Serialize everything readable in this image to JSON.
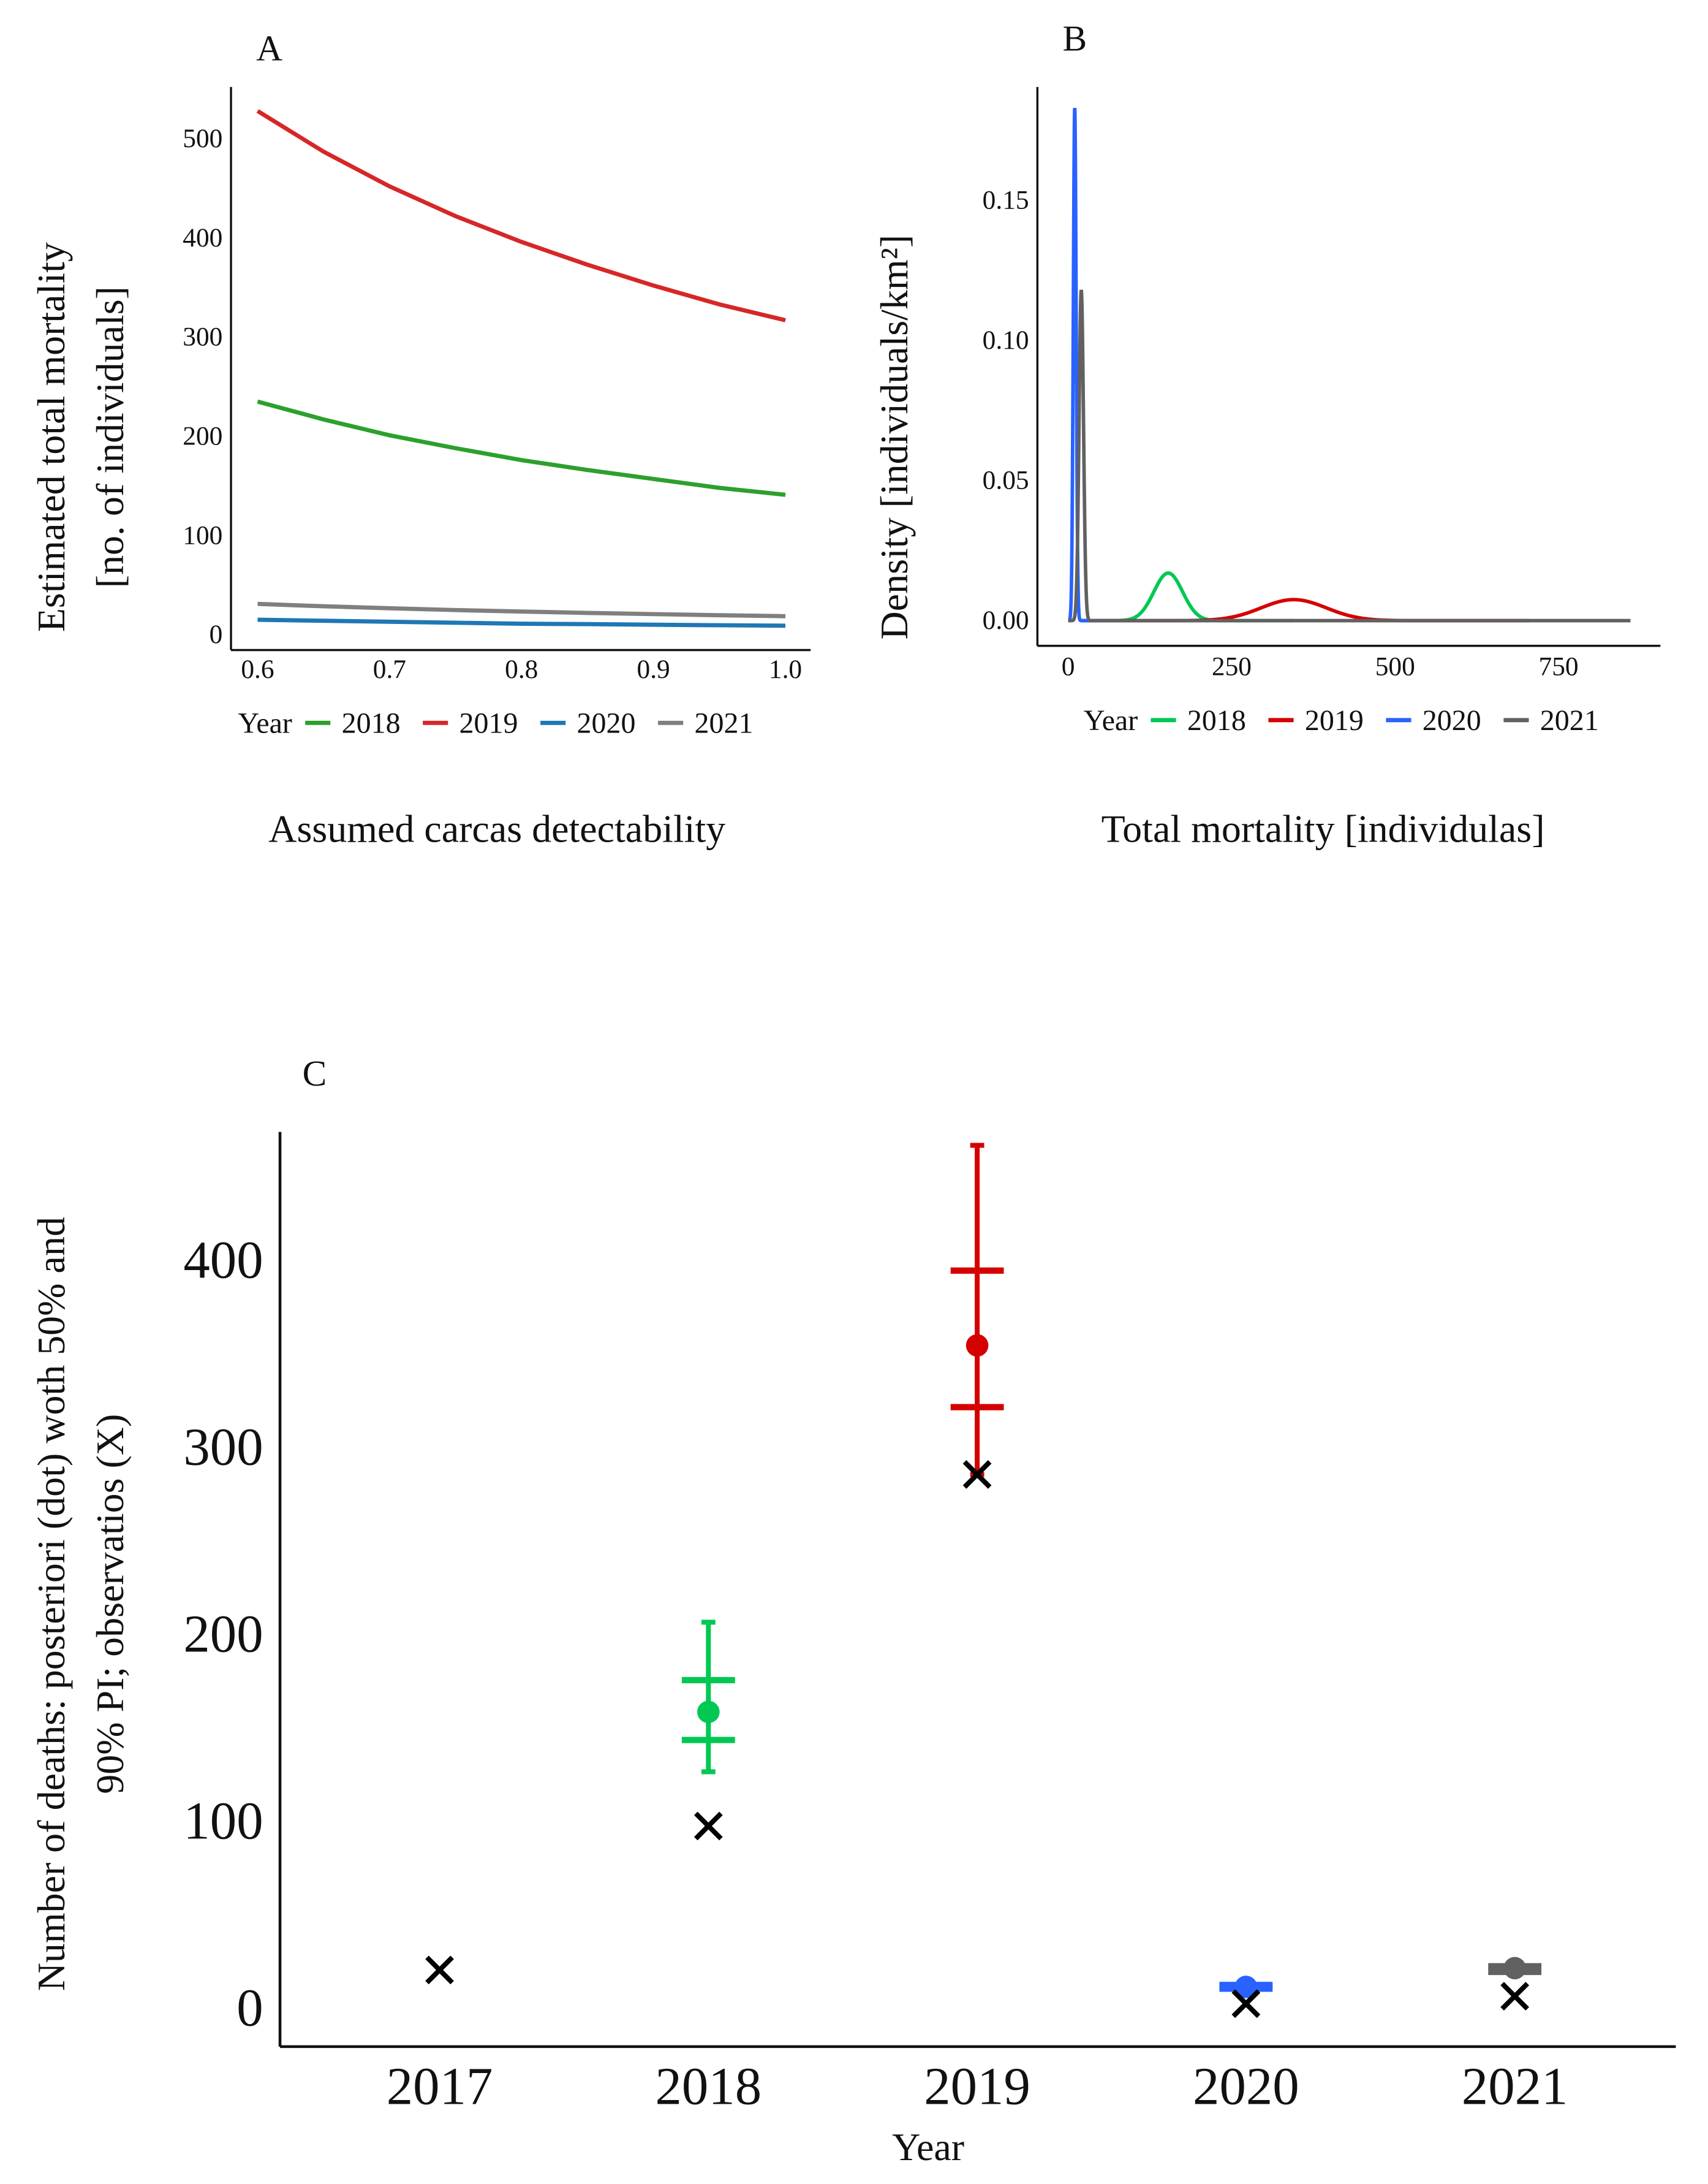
{
  "chart_data": [
    {
      "panel": "A",
      "type": "line",
      "xlabel": "Assumed carcas detectability",
      "ylabel_lines": [
        "Estimated total mortality",
        "[no. of individuals]"
      ],
      "xlim": [
        0.6,
        1.0
      ],
      "ylim": [
        0,
        540
      ],
      "xticks": [
        "0.6",
        "0.7",
        "0.8",
        "0.9",
        "1.0"
      ],
      "yticks": [
        "0",
        "100",
        "200",
        "300",
        "400",
        "500"
      ],
      "legend": {
        "title": "Year",
        "position": "bottom"
      },
      "x": [
        0.6,
        0.65,
        0.7,
        0.75,
        0.8,
        0.85,
        0.9,
        0.95,
        1.0
      ],
      "series": [
        {
          "name": "2018",
          "color": "#2ca02c",
          "values": [
            235,
            217,
            201,
            188,
            176,
            166,
            157,
            148,
            141
          ]
        },
        {
          "name": "2019",
          "color": "#d62728",
          "values": [
            528,
            487,
            452,
            422,
            396,
            373,
            352,
            333,
            317
          ]
        },
        {
          "name": "2020",
          "color": "#1f77b4",
          "values": [
            15,
            14,
            13,
            12,
            11,
            10.6,
            10,
            9.5,
            9
          ]
        },
        {
          "name": "2021",
          "color": "#7f7f7f",
          "values": [
            31,
            28.6,
            26.6,
            24.8,
            23.3,
            21.9,
            20.7,
            19.6,
            18.6
          ]
        }
      ]
    },
    {
      "panel": "B",
      "type": "line",
      "xlabel": "Total mortality [individulas]",
      "ylabel": "Density [individuals/km²]",
      "xlim": [
        0,
        860
      ],
      "ylim": [
        0,
        0.185
      ],
      "xticks": [
        "0",
        "250",
        "500",
        "750"
      ],
      "yticks": [
        "0.00",
        "0.05",
        "0.10",
        "0.15"
      ],
      "legend": {
        "title": "Year",
        "position": "bottom"
      },
      "series": [
        {
          "name": "2018",
          "color": "#00c853",
          "peak_x": 153,
          "peak_density": 0.017,
          "sd": 22
        },
        {
          "name": "2019",
          "color": "#d50000",
          "peak_x": 345,
          "peak_density": 0.0075,
          "sd": 50
        },
        {
          "name": "2020",
          "color": "#2962ff",
          "peak_x": 10,
          "peak_density": 0.183,
          "sd": 2.2
        },
        {
          "name": "2021",
          "color": "#616161",
          "peak_x": 20,
          "peak_density": 0.118,
          "sd": 3.4
        }
      ]
    },
    {
      "panel": "C",
      "type": "scatter",
      "xlabel": "Year",
      "ylabel_lines": [
        "Number of deaths: posteriori (dot) woth 50% and",
        "90% PI; observatios (X)"
      ],
      "ylim": [
        0,
        480
      ],
      "yticks": [
        "0",
        "100",
        "200",
        "300",
        "400"
      ],
      "categories": [
        "2017",
        "2018",
        "2019",
        "2020",
        "2021"
      ],
      "observed": [
        20,
        97,
        285,
        2,
        6
      ],
      "posterior": [
        null,
        {
          "median": 158,
          "pi50": [
            143,
            175
          ],
          "pi90": [
            126,
            206
          ],
          "color": "#00c853"
        },
        {
          "median": 354,
          "pi50": [
            321,
            394
          ],
          "pi90": [
            285,
            461
          ],
          "color": "#d50000"
        },
        {
          "median": 11,
          "pi50": [
            10,
            12
          ],
          "pi90": [
            9,
            13
          ],
          "color": "#2962ff"
        },
        {
          "median": 21,
          "pi50": [
            19,
            22
          ],
          "pi90": [
            18,
            23
          ],
          "color": "#616161"
        }
      ]
    }
  ],
  "panels": {
    "a": "A",
    "b": "B",
    "c": "C"
  }
}
